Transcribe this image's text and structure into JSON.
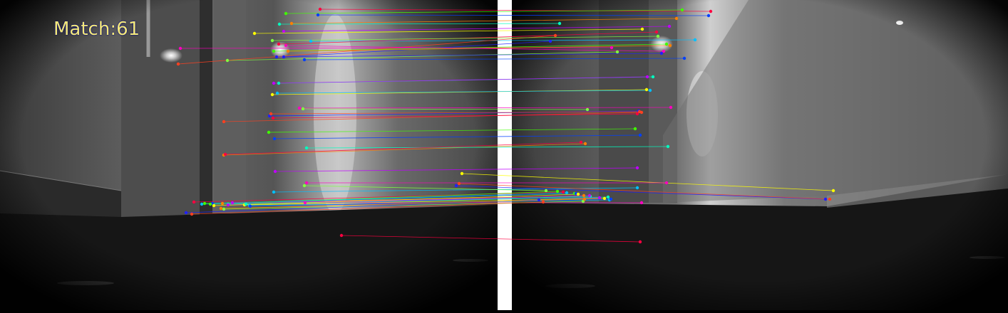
{
  "overlay": {
    "match_text": "Match:61",
    "match_count": 61,
    "text_color": "#f4e97a",
    "separator_color": "#ffffff"
  },
  "scene": {
    "description_colors": {
      "wall": "#5a5a5a",
      "floor": "#141414",
      "background": "#000000"
    }
  },
  "palette": [
    "#ff0040",
    "#40ff00",
    "#0040ff",
    "#ff8000",
    "#00ffc0",
    "#c000ff",
    "#ffff00",
    "#00c0ff",
    "#ff00c0",
    "#80ff40",
    "#2020ff",
    "#ff4020"
  ],
  "matches": [
    [
      449,
      13,
      997,
      16
    ],
    [
      401,
      19,
      957,
      14
    ],
    [
      446,
      21,
      994,
      22
    ],
    [
      409,
      33,
      949,
      26
    ],
    [
      392,
      34,
      785,
      33
    ],
    [
      398,
      44,
      939,
      37
    ],
    [
      357,
      47,
      901,
      41
    ],
    [
      436,
      58,
      975,
      56
    ],
    [
      253,
      68,
      858,
      67
    ],
    [
      319,
      85,
      866,
      73
    ],
    [
      398,
      80,
      772,
      58
    ],
    [
      250,
      90,
      779,
      50
    ],
    [
      391,
      62,
      921,
      45
    ],
    [
      384,
      72,
      935,
      62
    ],
    [
      427,
      84,
      960,
      82
    ],
    [
      404,
      72,
      940,
      64
    ],
    [
      391,
      117,
      916,
      108
    ],
    [
      384,
      117,
      908,
      108
    ],
    [
      382,
      133,
      907,
      126
    ],
    [
      389,
      131,
      912,
      127
    ],
    [
      420,
      152,
      941,
      151
    ],
    [
      425,
      153,
      824,
      154
    ],
    [
      378,
      163,
      896,
      156
    ],
    [
      314,
      171,
      900,
      158
    ],
    [
      383,
      166,
      894,
      160
    ],
    [
      377,
      186,
      891,
      181
    ],
    [
      385,
      195,
      898,
      190
    ],
    [
      314,
      218,
      821,
      202
    ],
    [
      430,
      208,
      937,
      206
    ],
    [
      386,
      241,
      894,
      236
    ],
    [
      648,
      244,
      1169,
      268
    ],
    [
      384,
      270,
      894,
      264
    ],
    [
      430,
      257,
      935,
      257
    ],
    [
      427,
      261,
      766,
      268
    ],
    [
      640,
      261,
      1158,
      280
    ],
    [
      644,
      258,
      1164,
      280
    ],
    [
      272,
      284,
      790,
      270
    ],
    [
      287,
      286,
      806,
      272
    ],
    [
      298,
      286,
      808,
      272
    ],
    [
      312,
      286,
      819,
      275
    ],
    [
      320,
      287,
      828,
      276
    ],
    [
      326,
      285,
      841,
      278
    ],
    [
      343,
      288,
      848,
      279
    ],
    [
      350,
      289,
      855,
      281
    ],
    [
      428,
      285,
      900,
      285
    ],
    [
      314,
      294,
      818,
      283
    ],
    [
      261,
      299,
      756,
      281
    ],
    [
      269,
      301,
      762,
      284
    ],
    [
      479,
      331,
      898,
      340
    ],
    [
      295,
      287,
      782,
      269
    ],
    [
      351,
      290,
      857,
      280
    ],
    [
      310,
      293,
      820,
      280
    ],
    [
      345,
      287,
      853,
      277
    ],
    [
      320,
      288,
      827,
      275
    ],
    [
      300,
      289,
      811,
      273
    ],
    [
      283,
      287,
      795,
      271
    ],
    [
      401,
      64,
      931,
      72
    ],
    [
      382,
      57,
      923,
      51
    ],
    [
      388,
      80,
      928,
      75
    ],
    [
      380,
      160,
      897,
      157
    ],
    [
      316,
      217,
      815,
      200
    ]
  ]
}
